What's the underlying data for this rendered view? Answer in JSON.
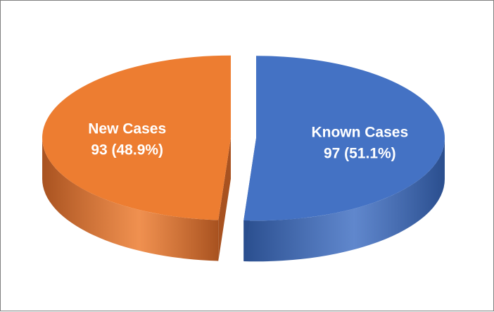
{
  "chart_data": {
    "type": "pie",
    "title": "",
    "slices": [
      {
        "name": "Known Cases",
        "value": 97,
        "percent": "51.1%",
        "label_line1": "Known Cases",
        "label_line2": "97 (51.1%)",
        "color": "#4472C4",
        "side_color": "#2A4E8E"
      },
      {
        "name": "New Cases",
        "value": 93,
        "percent": "48.9%",
        "label_line1": "New Cases",
        "label_line2": "93 (48.9%)",
        "color": "#ED7D31",
        "side_color": "#A85220"
      }
    ],
    "style": "3d-exploded",
    "legend": "none"
  }
}
